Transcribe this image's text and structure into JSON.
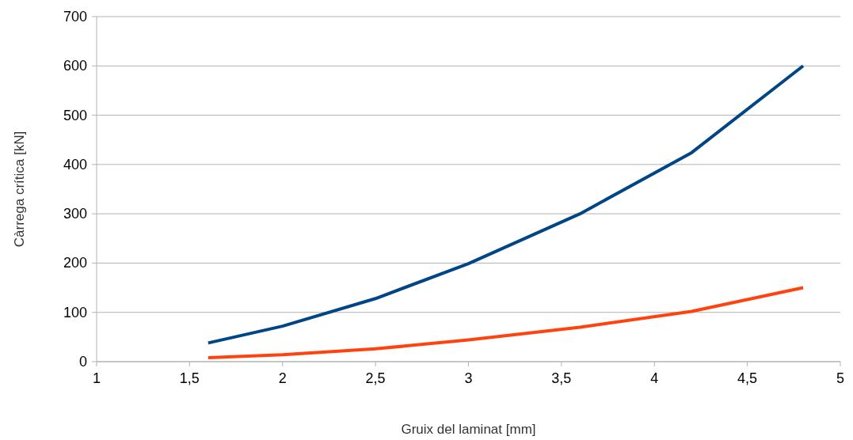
{
  "chart_data": {
    "type": "line",
    "xlabel": "Gruix del laminat [mm]",
    "ylabel": "Càrrega crítica [kN]",
    "x": [
      1.6,
      2,
      2.5,
      3,
      3.6,
      4.2,
      4.8
    ],
    "series": [
      {
        "color": "#004586",
        "values": [
          38,
          72,
          128,
          199,
          300,
          424,
          600
        ]
      },
      {
        "color": "#ff420e",
        "values": [
          8,
          14,
          26,
          44,
          70,
          102,
          150
        ]
      }
    ],
    "xlim": [
      1,
      5
    ],
    "xticks": [
      1,
      {
        "value": 1.5,
        "label": "1,5"
      },
      2,
      {
        "value": 2.5,
        "label": "2,5"
      },
      3,
      {
        "value": 3.5,
        "label": "3,5"
      },
      4,
      {
        "value": 4.5,
        "label": "4,5"
      },
      5
    ],
    "ylim": [
      0,
      700
    ],
    "yticks": [
      0,
      100,
      200,
      300,
      400,
      500,
      600,
      700
    ],
    "grid": "y",
    "line_style": "solid",
    "marker": "none"
  }
}
